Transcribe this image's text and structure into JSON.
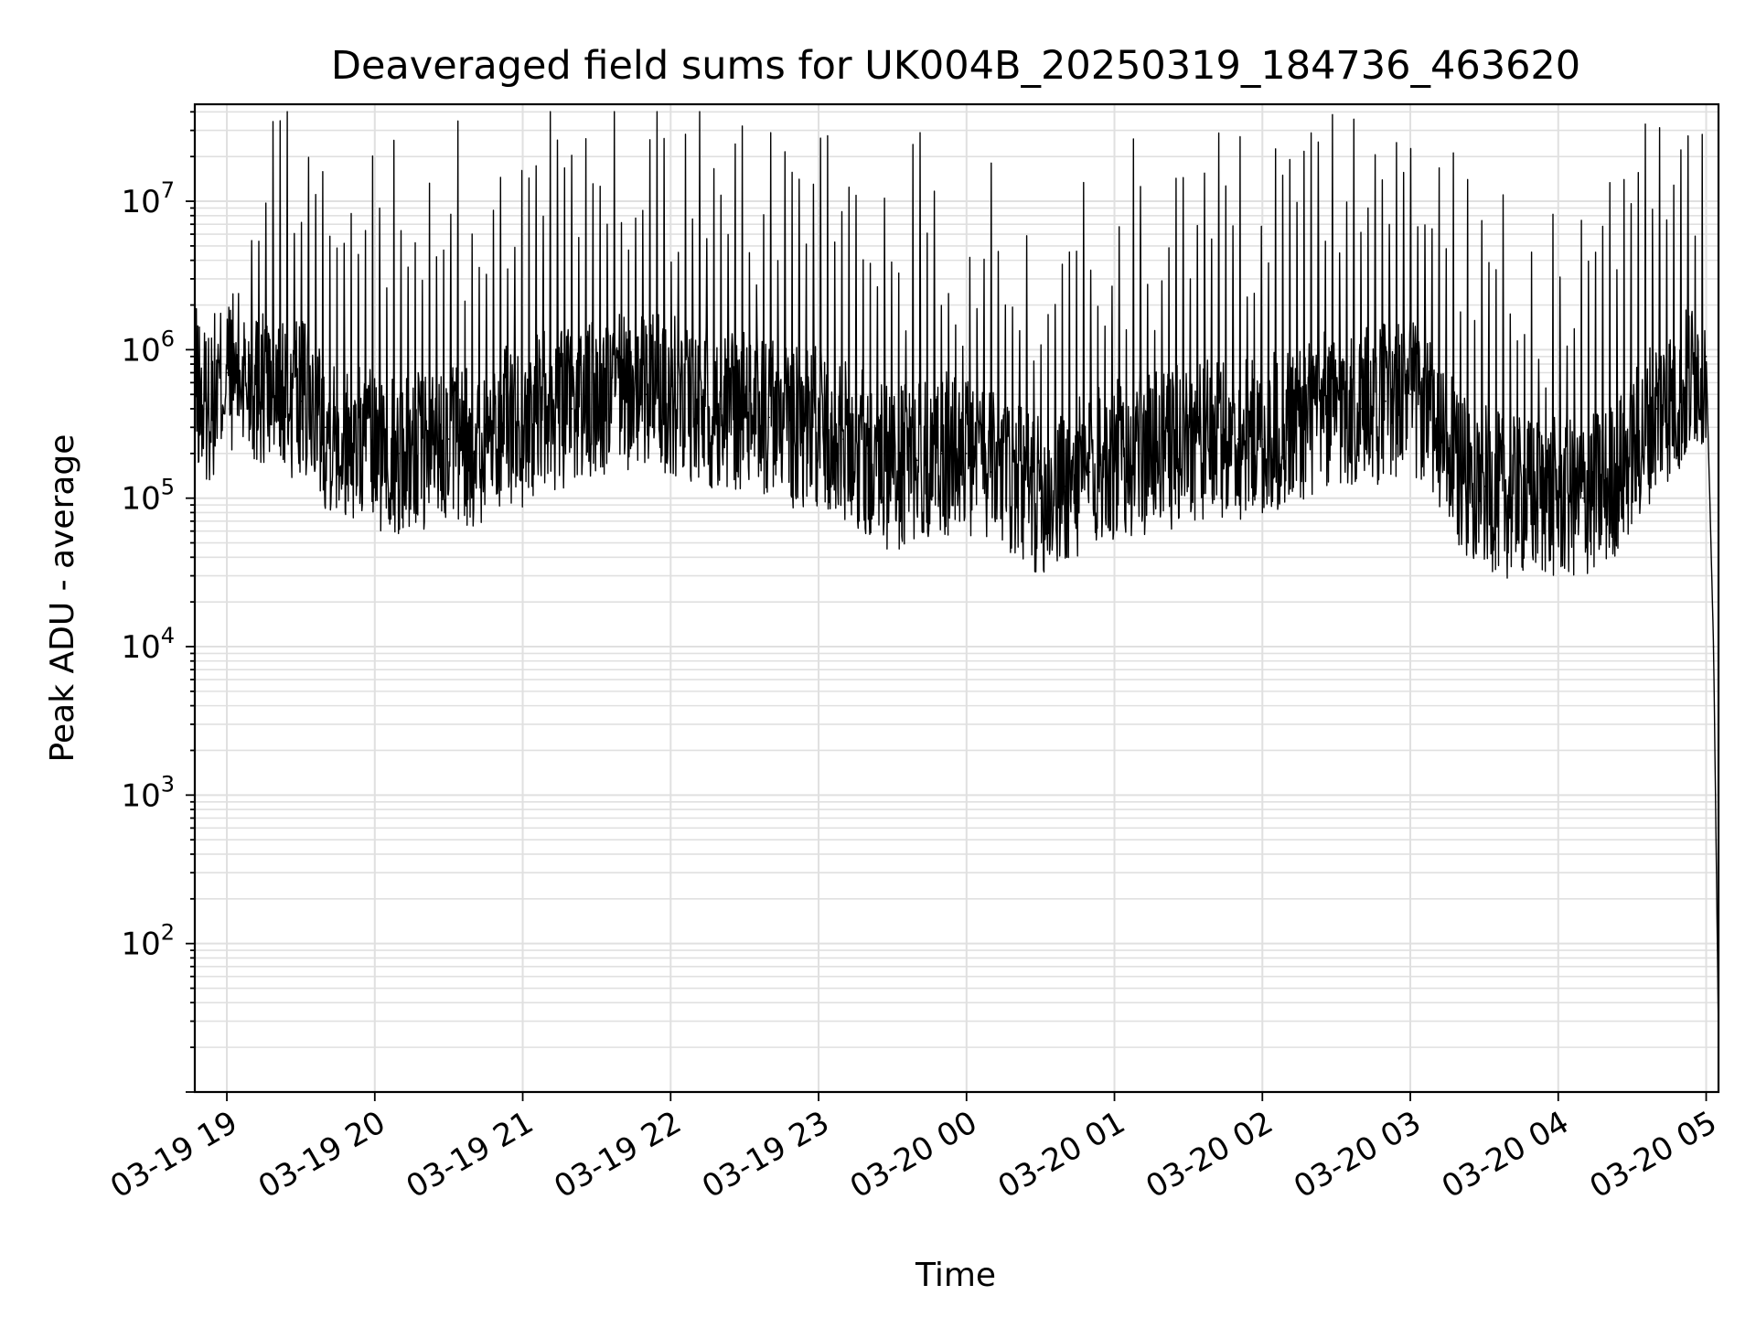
{
  "chart_data": {
    "type": "line",
    "title": "Deaveraged field sums for UK004B_20250319_184736_463620",
    "xlabel": "Time",
    "ylabel": "Peak ADU - average",
    "x_tick_labels": [
      "03-19 19",
      "03-19 20",
      "03-19 21",
      "03-19 22",
      "03-19 23",
      "03-20 00",
      "03-20 01",
      "03-20 02",
      "03-20 03",
      "03-20 04",
      "03-20 05"
    ],
    "y_ticks": [
      {
        "base": "10",
        "exp": "2",
        "value": 100
      },
      {
        "base": "10",
        "exp": "3",
        "value": 1000
      },
      {
        "base": "10",
        "exp": "4",
        "value": 10000
      },
      {
        "base": "10",
        "exp": "5",
        "value": 100000
      },
      {
        "base": "10",
        "exp": "6",
        "value": 1000000
      },
      {
        "base": "10",
        "exp": "7",
        "value": 10000000
      }
    ],
    "xlim": [
      "2025-03-19 18:47",
      "2025-03-20 05:05"
    ],
    "ylim": [
      10,
      45000000
    ],
    "yscale": "log",
    "grid": true,
    "line_color": "#000000",
    "grid_color": "#e0e0e0",
    "series": [
      {
        "x": [
          "2025-03-19 18:47",
          "2025-03-19 18:50",
          "2025-03-19 18:55",
          "2025-03-19 19:00",
          "2025-03-19 19:05",
          "2025-03-19 19:10",
          "2025-03-19 19:20",
          "2025-03-19 19:30",
          "2025-03-19 19:40",
          "2025-03-19 19:50",
          "2025-03-19 20:00",
          "2025-03-19 20:10",
          "2025-03-19 20:20",
          "2025-03-19 20:30",
          "2025-03-19 20:40",
          "2025-03-19 20:50",
          "2025-03-19 21:00",
          "2025-03-19 21:10",
          "2025-03-19 21:20",
          "2025-03-19 21:30",
          "2025-03-19 21:40",
          "2025-03-19 21:50",
          "2025-03-19 22:00",
          "2025-03-19 22:10",
          "2025-03-19 22:20",
          "2025-03-19 22:30",
          "2025-03-19 22:40",
          "2025-03-19 22:50",
          "2025-03-19 23:00",
          "2025-03-19 23:10",
          "2025-03-19 23:20",
          "2025-03-19 23:30",
          "2025-03-19 23:40",
          "2025-03-19 23:50",
          "2025-03-20 00:00",
          "2025-03-20 00:10",
          "2025-03-20 00:20",
          "2025-03-20 00:30",
          "2025-03-20 00:40",
          "2025-03-20 00:50",
          "2025-03-20 01:00",
          "2025-03-20 01:10",
          "2025-03-20 01:20",
          "2025-03-20 01:30",
          "2025-03-20 01:40",
          "2025-03-20 01:50",
          "2025-03-20 02:00",
          "2025-03-20 02:10",
          "2025-03-20 02:20",
          "2025-03-20 02:30",
          "2025-03-20 02:40",
          "2025-03-20 02:50",
          "2025-03-20 03:00",
          "2025-03-20 03:10",
          "2025-03-20 03:20",
          "2025-03-20 03:30",
          "2025-03-20 03:40",
          "2025-03-20 03:50",
          "2025-03-20 04:00",
          "2025-03-20 04:10",
          "2025-03-20 04:20",
          "2025-03-20 04:30",
          "2025-03-20 04:40",
          "2025-03-20 04:50",
          "2025-03-20 05:00",
          "2025-03-20 05:03",
          "2025-03-20 05:05"
        ],
        "y": [
          600000,
          400000,
          500000,
          700000,
          700000,
          600000,
          500000,
          450000,
          300000,
          250000,
          200000,
          200000,
          200000,
          250000,
          200000,
          300000,
          300000,
          400000,
          400000,
          450000,
          500000,
          500000,
          500000,
          450000,
          400000,
          400000,
          350000,
          300000,
          300000,
          250000,
          200000,
          150000,
          180000,
          200000,
          200000,
          150000,
          120000,
          100000,
          120000,
          150000,
          180000,
          200000,
          200000,
          250000,
          250000,
          250000,
          250000,
          300000,
          350000,
          400000,
          400000,
          450000,
          500000,
          300000,
          150000,
          120000,
          100000,
          100000,
          100000,
          100000,
          120000,
          200000,
          400000,
          500000,
          900000,
          10000,
          25
        ]
      }
    ]
  }
}
